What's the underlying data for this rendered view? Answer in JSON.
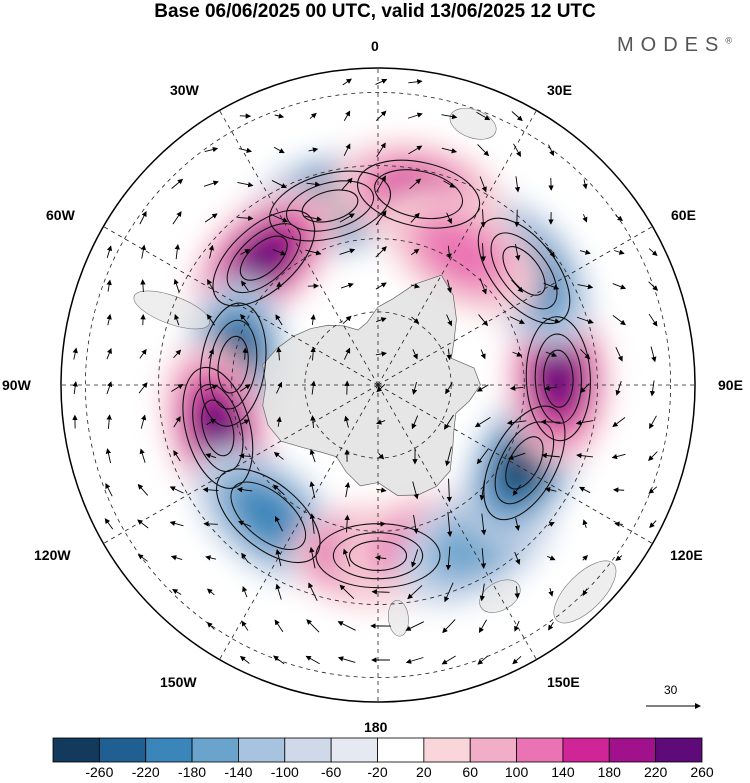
{
  "title": "Base 06/06/2025 00 UTC, valid 13/06/2025 12 UTC",
  "brand": {
    "name": "MODES",
    "mark": "®"
  },
  "map": {
    "projection": "south-polar-stereographic",
    "longitude_labels": [
      "0",
      "30E",
      "60E",
      "90E",
      "120E",
      "150E",
      "180",
      "150W",
      "120W",
      "90W",
      "60W",
      "30W"
    ],
    "ocean_color": "#ffffff",
    "land_color": "#e3e3e3",
    "anomaly_centers": [
      {
        "lon": -15,
        "lat": -52,
        "value": -250
      },
      {
        "lon": -42,
        "lat": -55,
        "value": 230
      },
      {
        "lon": -82,
        "lat": -60,
        "value": -240
      },
      {
        "lon": -105,
        "lat": -56,
        "value": 240
      },
      {
        "lon": -140,
        "lat": -55,
        "value": -160
      },
      {
        "lon": 180,
        "lat": -55,
        "value": 230
      },
      {
        "lon": 165,
        "lat": -56,
        "value": 100
      },
      {
        "lon": 148,
        "lat": -52,
        "value": -120
      },
      {
        "lon": 118,
        "lat": -56,
        "value": -220
      },
      {
        "lon": 88,
        "lat": -53,
        "value": 220
      },
      {
        "lon": 52,
        "lat": -52,
        "value": -200
      },
      {
        "lon": 12,
        "lat": -50,
        "value": 160
      },
      {
        "lon": 32,
        "lat": -58,
        "value": 100
      }
    ]
  },
  "vector_reference": {
    "value": "30"
  },
  "colorbar": {
    "ticks": [
      "-260",
      "-220",
      "-180",
      "-140",
      "-100",
      "-60",
      "-20",
      "20",
      "60",
      "100",
      "140",
      "180",
      "220",
      "260"
    ],
    "colors": [
      "#123a5c",
      "#1f5f92",
      "#3a85ba",
      "#6aa3cc",
      "#a7c3df",
      "#cfd9ea",
      "#e6e8f2",
      "#ffffff",
      "#f8d6da",
      "#f3aec7",
      "#ea73b3",
      "#cf2596",
      "#a0118b",
      "#5e0a79"
    ]
  }
}
